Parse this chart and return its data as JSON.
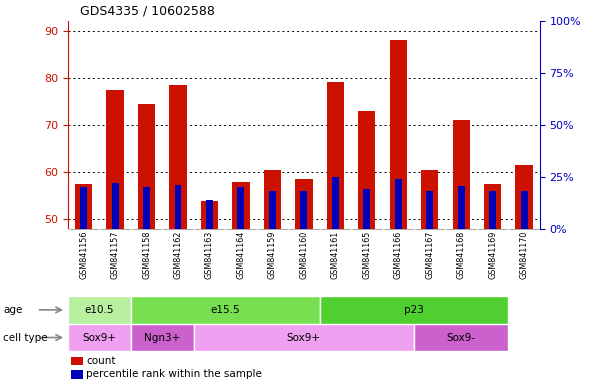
{
  "title": "GDS4335 / 10602588",
  "samples": [
    "GSM841156",
    "GSM841157",
    "GSM841158",
    "GSM841162",
    "GSM841163",
    "GSM841164",
    "GSM841159",
    "GSM841160",
    "GSM841161",
    "GSM841165",
    "GSM841166",
    "GSM841167",
    "GSM841168",
    "GSM841169",
    "GSM841170"
  ],
  "count_values": [
    57.5,
    77.5,
    74.5,
    78.5,
    54.0,
    58.0,
    60.5,
    58.5,
    79.0,
    73.0,
    88.0,
    60.5,
    71.0,
    57.5,
    61.5
  ],
  "percentile_values": [
    20.0,
    22.0,
    20.0,
    21.0,
    14.0,
    20.0,
    18.0,
    18.0,
    25.0,
    19.0,
    24.0,
    18.0,
    20.5,
    18.0,
    18.0
  ],
  "ylim_left": [
    48,
    92
  ],
  "ylim_right": [
    0,
    100
  ],
  "yticks_left": [
    50,
    60,
    70,
    80,
    90
  ],
  "yticks_right": [
    0,
    25,
    50,
    75,
    100
  ],
  "yticklabels_right": [
    "0%",
    "25%",
    "50%",
    "75%",
    "100%"
  ],
  "age_groups": [
    {
      "label": "e10.5",
      "start": 0,
      "end": 2,
      "color": "#b8f0a0"
    },
    {
      "label": "e15.5",
      "start": 2,
      "end": 8,
      "color": "#78e050"
    },
    {
      "label": "p23",
      "start": 8,
      "end": 14,
      "color": "#50d030"
    }
  ],
  "cell_groups": [
    {
      "label": "Sox9+",
      "start": 0,
      "end": 2,
      "color": "#f0a0f0"
    },
    {
      "label": "Ngn3+",
      "start": 2,
      "end": 4,
      "color": "#cc60cc"
    },
    {
      "label": "Sox9+",
      "start": 4,
      "end": 11,
      "color": "#f0a0f0"
    },
    {
      "label": "Sox9-",
      "start": 11,
      "end": 14,
      "color": "#cc60cc"
    }
  ],
  "bar_color_red": "#cc1100",
  "bar_color_blue": "#0000bb",
  "bar_width": 0.55,
  "blue_bar_width": 0.22,
  "axis_color_left": "#cc1100",
  "axis_color_right": "#0000bb",
  "bg_color": "#ffffff",
  "tick_label_area_color": "#cccccc",
  "legend_red_label": "count",
  "legend_blue_label": "percentile rank within the sample",
  "age_label": "age",
  "celltype_label": "cell type",
  "base_value": 48
}
